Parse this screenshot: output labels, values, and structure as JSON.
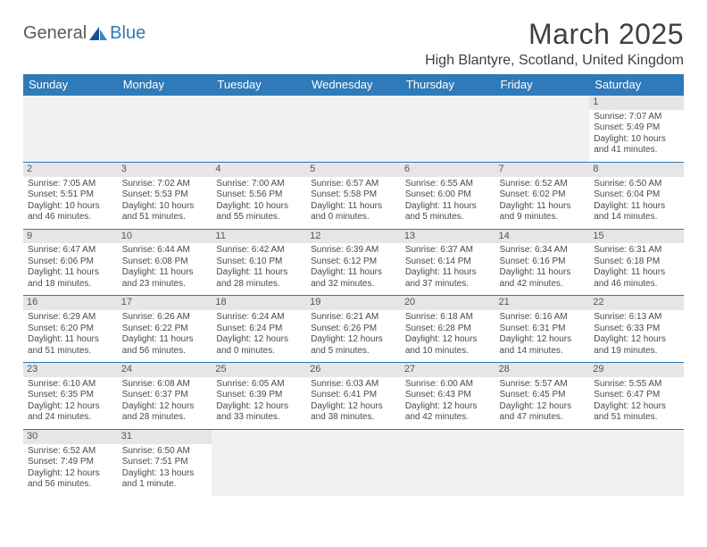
{
  "logo": {
    "text1": "General",
    "text2": "Blue"
  },
  "title": "March 2025",
  "location": "High Blantyre, Scotland, United Kingdom",
  "colors": {
    "header_bg": "#2f7ab8",
    "header_text": "#ffffff",
    "daynum_bg": "#e6e6e6",
    "blank_bg": "#f1f1f1",
    "rule": "#2f7ab8",
    "text": "#4a4a4a"
  },
  "daysOfWeek": [
    "Sunday",
    "Monday",
    "Tuesday",
    "Wednesday",
    "Thursday",
    "Friday",
    "Saturday"
  ],
  "weeks": [
    [
      null,
      null,
      null,
      null,
      null,
      null,
      {
        "n": "1",
        "sunrise": "Sunrise: 7:07 AM",
        "sunset": "Sunset: 5:49 PM",
        "daylight1": "Daylight: 10 hours",
        "daylight2": "and 41 minutes."
      }
    ],
    [
      {
        "n": "2",
        "sunrise": "Sunrise: 7:05 AM",
        "sunset": "Sunset: 5:51 PM",
        "daylight1": "Daylight: 10 hours",
        "daylight2": "and 46 minutes."
      },
      {
        "n": "3",
        "sunrise": "Sunrise: 7:02 AM",
        "sunset": "Sunset: 5:53 PM",
        "daylight1": "Daylight: 10 hours",
        "daylight2": "and 51 minutes."
      },
      {
        "n": "4",
        "sunrise": "Sunrise: 7:00 AM",
        "sunset": "Sunset: 5:56 PM",
        "daylight1": "Daylight: 10 hours",
        "daylight2": "and 55 minutes."
      },
      {
        "n": "5",
        "sunrise": "Sunrise: 6:57 AM",
        "sunset": "Sunset: 5:58 PM",
        "daylight1": "Daylight: 11 hours",
        "daylight2": "and 0 minutes."
      },
      {
        "n": "6",
        "sunrise": "Sunrise: 6:55 AM",
        "sunset": "Sunset: 6:00 PM",
        "daylight1": "Daylight: 11 hours",
        "daylight2": "and 5 minutes."
      },
      {
        "n": "7",
        "sunrise": "Sunrise: 6:52 AM",
        "sunset": "Sunset: 6:02 PM",
        "daylight1": "Daylight: 11 hours",
        "daylight2": "and 9 minutes."
      },
      {
        "n": "8",
        "sunrise": "Sunrise: 6:50 AM",
        "sunset": "Sunset: 6:04 PM",
        "daylight1": "Daylight: 11 hours",
        "daylight2": "and 14 minutes."
      }
    ],
    [
      {
        "n": "9",
        "sunrise": "Sunrise: 6:47 AM",
        "sunset": "Sunset: 6:06 PM",
        "daylight1": "Daylight: 11 hours",
        "daylight2": "and 18 minutes."
      },
      {
        "n": "10",
        "sunrise": "Sunrise: 6:44 AM",
        "sunset": "Sunset: 6:08 PM",
        "daylight1": "Daylight: 11 hours",
        "daylight2": "and 23 minutes."
      },
      {
        "n": "11",
        "sunrise": "Sunrise: 6:42 AM",
        "sunset": "Sunset: 6:10 PM",
        "daylight1": "Daylight: 11 hours",
        "daylight2": "and 28 minutes."
      },
      {
        "n": "12",
        "sunrise": "Sunrise: 6:39 AM",
        "sunset": "Sunset: 6:12 PM",
        "daylight1": "Daylight: 11 hours",
        "daylight2": "and 32 minutes."
      },
      {
        "n": "13",
        "sunrise": "Sunrise: 6:37 AM",
        "sunset": "Sunset: 6:14 PM",
        "daylight1": "Daylight: 11 hours",
        "daylight2": "and 37 minutes."
      },
      {
        "n": "14",
        "sunrise": "Sunrise: 6:34 AM",
        "sunset": "Sunset: 6:16 PM",
        "daylight1": "Daylight: 11 hours",
        "daylight2": "and 42 minutes."
      },
      {
        "n": "15",
        "sunrise": "Sunrise: 6:31 AM",
        "sunset": "Sunset: 6:18 PM",
        "daylight1": "Daylight: 11 hours",
        "daylight2": "and 46 minutes."
      }
    ],
    [
      {
        "n": "16",
        "sunrise": "Sunrise: 6:29 AM",
        "sunset": "Sunset: 6:20 PM",
        "daylight1": "Daylight: 11 hours",
        "daylight2": "and 51 minutes."
      },
      {
        "n": "17",
        "sunrise": "Sunrise: 6:26 AM",
        "sunset": "Sunset: 6:22 PM",
        "daylight1": "Daylight: 11 hours",
        "daylight2": "and 56 minutes."
      },
      {
        "n": "18",
        "sunrise": "Sunrise: 6:24 AM",
        "sunset": "Sunset: 6:24 PM",
        "daylight1": "Daylight: 12 hours",
        "daylight2": "and 0 minutes."
      },
      {
        "n": "19",
        "sunrise": "Sunrise: 6:21 AM",
        "sunset": "Sunset: 6:26 PM",
        "daylight1": "Daylight: 12 hours",
        "daylight2": "and 5 minutes."
      },
      {
        "n": "20",
        "sunrise": "Sunrise: 6:18 AM",
        "sunset": "Sunset: 6:28 PM",
        "daylight1": "Daylight: 12 hours",
        "daylight2": "and 10 minutes."
      },
      {
        "n": "21",
        "sunrise": "Sunrise: 6:16 AM",
        "sunset": "Sunset: 6:31 PM",
        "daylight1": "Daylight: 12 hours",
        "daylight2": "and 14 minutes."
      },
      {
        "n": "22",
        "sunrise": "Sunrise: 6:13 AM",
        "sunset": "Sunset: 6:33 PM",
        "daylight1": "Daylight: 12 hours",
        "daylight2": "and 19 minutes."
      }
    ],
    [
      {
        "n": "23",
        "sunrise": "Sunrise: 6:10 AM",
        "sunset": "Sunset: 6:35 PM",
        "daylight1": "Daylight: 12 hours",
        "daylight2": "and 24 minutes."
      },
      {
        "n": "24",
        "sunrise": "Sunrise: 6:08 AM",
        "sunset": "Sunset: 6:37 PM",
        "daylight1": "Daylight: 12 hours",
        "daylight2": "and 28 minutes."
      },
      {
        "n": "25",
        "sunrise": "Sunrise: 6:05 AM",
        "sunset": "Sunset: 6:39 PM",
        "daylight1": "Daylight: 12 hours",
        "daylight2": "and 33 minutes."
      },
      {
        "n": "26",
        "sunrise": "Sunrise: 6:03 AM",
        "sunset": "Sunset: 6:41 PM",
        "daylight1": "Daylight: 12 hours",
        "daylight2": "and 38 minutes."
      },
      {
        "n": "27",
        "sunrise": "Sunrise: 6:00 AM",
        "sunset": "Sunset: 6:43 PM",
        "daylight1": "Daylight: 12 hours",
        "daylight2": "and 42 minutes."
      },
      {
        "n": "28",
        "sunrise": "Sunrise: 5:57 AM",
        "sunset": "Sunset: 6:45 PM",
        "daylight1": "Daylight: 12 hours",
        "daylight2": "and 47 minutes."
      },
      {
        "n": "29",
        "sunrise": "Sunrise: 5:55 AM",
        "sunset": "Sunset: 6:47 PM",
        "daylight1": "Daylight: 12 hours",
        "daylight2": "and 51 minutes."
      }
    ],
    [
      {
        "n": "30",
        "sunrise": "Sunrise: 6:52 AM",
        "sunset": "Sunset: 7:49 PM",
        "daylight1": "Daylight: 12 hours",
        "daylight2": "and 56 minutes."
      },
      {
        "n": "31",
        "sunrise": "Sunrise: 6:50 AM",
        "sunset": "Sunset: 7:51 PM",
        "daylight1": "Daylight: 13 hours",
        "daylight2": "and 1 minute."
      },
      null,
      null,
      null,
      null,
      null
    ]
  ]
}
